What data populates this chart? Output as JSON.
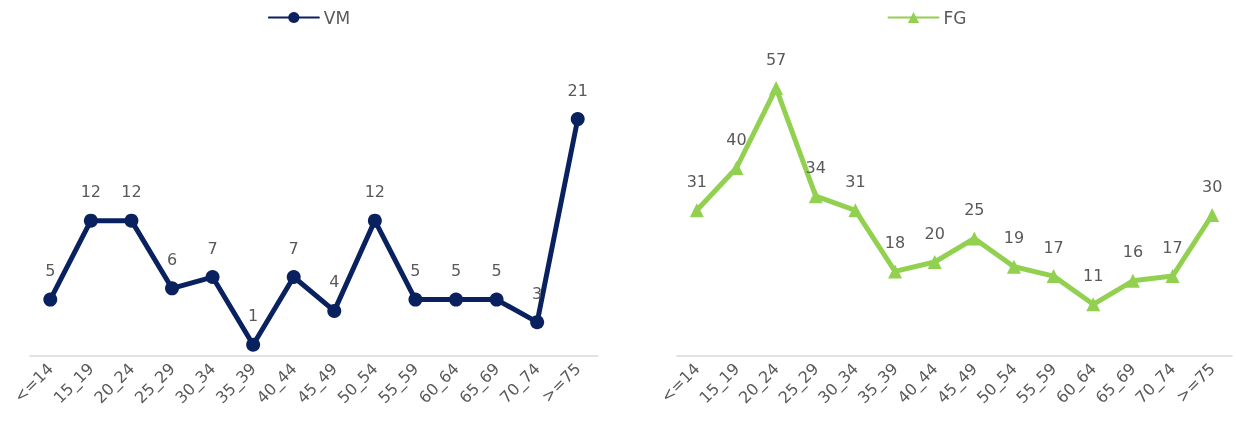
{
  "chart_data": [
    {
      "type": "line",
      "categories": [
        "<=14",
        "15_19",
        "20_24",
        "25_29",
        "30_34",
        "35_39",
        "40_44",
        "45_49",
        "50_54",
        "55_59",
        "60_64",
        "65_69",
        "70_74",
        ">=75"
      ],
      "series": [
        {
          "name": "VM",
          "color": "#0a2160",
          "values": [
            5,
            12,
            12,
            6,
            7,
            1,
            7,
            4,
            12,
            5,
            5,
            5,
            3,
            21
          ]
        }
      ],
      "data_labels": true,
      "marker": "circle",
      "legend": "top",
      "grid": false,
      "tick_labels": "x"
    },
    {
      "type": "line",
      "categories": [
        "<=14",
        "15_19",
        "20_24",
        "25_29",
        "30_34",
        "35_39",
        "40_44",
        "45_49",
        "50_54",
        "55_59",
        "60_64",
        "65_69",
        "70_74",
        ">=75"
      ],
      "series": [
        {
          "name": "FG",
          "color": "#92d050",
          "values": [
            31,
            40,
            57,
            34,
            31,
            18,
            20,
            25,
            19,
            17,
            11,
            16,
            17,
            30
          ]
        }
      ],
      "data_labels": true,
      "marker": "triangle",
      "legend": "top",
      "grid": false,
      "tick_labels": "x"
    }
  ]
}
